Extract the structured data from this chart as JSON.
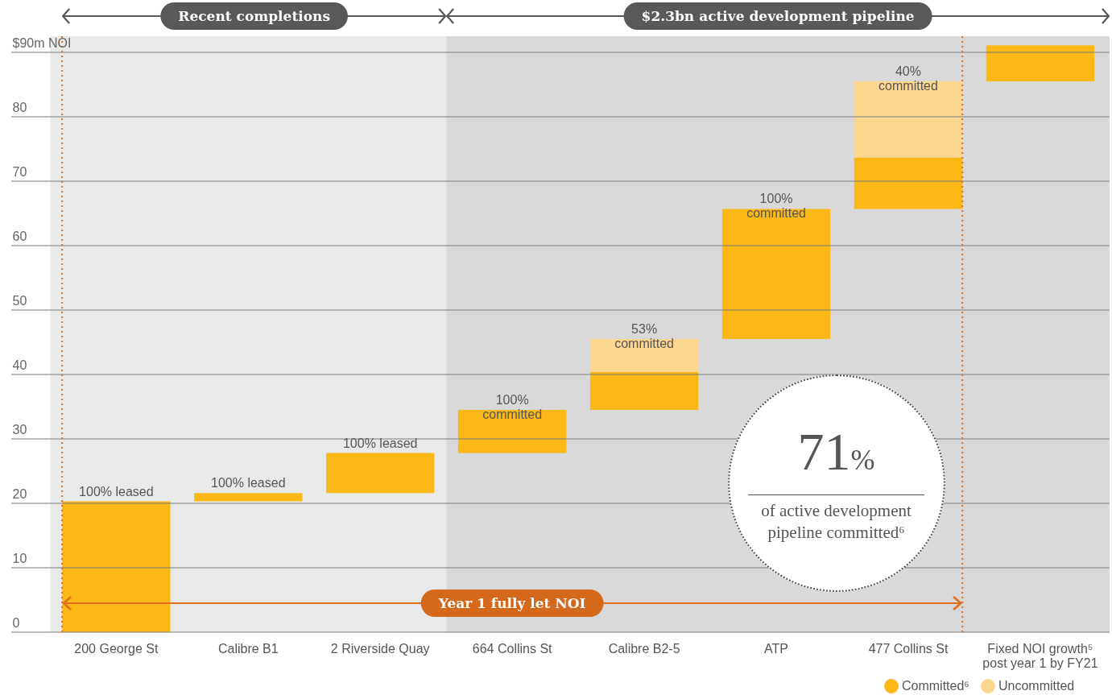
{
  "chart_data": {
    "type": "bar",
    "categories": [
      "200 George St",
      "Calibre B1",
      "2 Riverside Quay",
      "664 Collins St",
      "Calibre B2-5",
      "ATP",
      "477 Collins St",
      "Fixed NOI growth⁵ post year 1 by FY21"
    ],
    "series": [
      {
        "name": "Committed⁶",
        "color": "#fbb817",
        "base": [
          0,
          20.3,
          21.6,
          27.8,
          34.5,
          45.5,
          65.7,
          85.5
        ],
        "values": [
          20.3,
          1.3,
          6.2,
          6.7,
          5.9,
          20.2,
          8.0,
          5.6
        ]
      },
      {
        "name": "Uncommitted",
        "color": "#fdd68f",
        "base": [
          null,
          null,
          null,
          null,
          40.4,
          null,
          73.7,
          null
        ],
        "values": [
          null,
          null,
          null,
          null,
          5.1,
          null,
          11.8,
          null
        ]
      }
    ],
    "ylim": [
      0,
      92.5
    ],
    "yticks": [
      0,
      10,
      20,
      30,
      40,
      50,
      60,
      70,
      80,
      {
        "value": 90,
        "label": "$90m NOI"
      }
    ],
    "grid": "y",
    "legend": "bottom right",
    "bands": [
      {
        "axis": "x",
        "from": "200 George St",
        "to": "2 Riverside Quay",
        "label": "Recent completions",
        "color": "#e8e9e9"
      },
      {
        "axis": "x",
        "from": "664 Collins St",
        "to": "Fixed NOI growth⁵ post year 1 by FY21",
        "label": "$2.3bn active development pipeline",
        "color": "#d9d9d9"
      }
    ],
    "ref_lines": [
      {
        "axis": "x",
        "value": "200 George St",
        "color": "#e0701e",
        "line_style": "dotted"
      },
      {
        "axis": "x",
        "value": "477 Collins St",
        "color": "#e0701e",
        "line_style": "dotted"
      }
    ],
    "annotations": [
      {
        "text": "100% leased",
        "x": "200 George St",
        "y": 20.3
      },
      {
        "text": "100% leased",
        "x": "Calibre B1",
        "y": 21.6
      },
      {
        "text": "100% leased",
        "x": "2 Riverside Quay",
        "y": 27.8
      },
      {
        "text": "100%\ncommitted",
        "x": "664 Collins St",
        "y": 34.5
      },
      {
        "text": "53%\ncommitted",
        "x": "Calibre B2-5",
        "y": 45.5
      },
      {
        "text": "100%\ncommitted",
        "x": "ATP",
        "y": 65.7
      },
      {
        "text": "40%\ncommitted",
        "x": "477 Collins St",
        "y": 85.5
      },
      "71%",
      "of active development pipeline committed⁶",
      "Year 1 fully let NOI"
    ]
  }
}
